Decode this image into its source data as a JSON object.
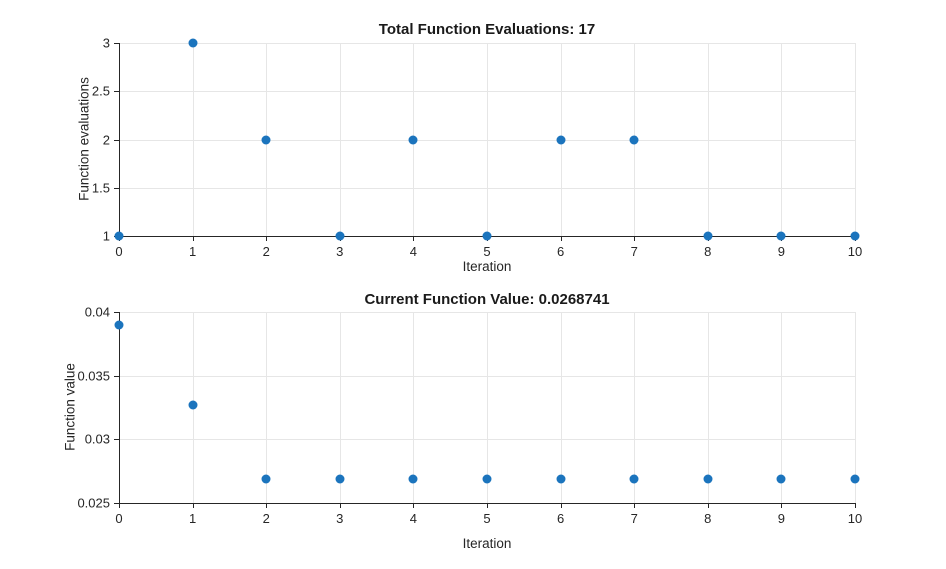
{
  "figure": {
    "background": "#ffffff"
  },
  "styles": {
    "axis_color": "#262626",
    "grid_color": "#e6e6e6",
    "tick_label_color": "#262626",
    "title_color": "#1a1a1a",
    "marker_color": "#1b74bd",
    "marker_size": 9
  },
  "chart_data": [
    {
      "type": "scatter",
      "title": "Total Function Evaluations: 17",
      "xlabel": "Iteration",
      "ylabel": "Function evaluations",
      "x": [
        0,
        1,
        2,
        3,
        4,
        5,
        6,
        7,
        8,
        9,
        10
      ],
      "y": [
        1,
        3,
        2,
        1,
        2,
        1,
        2,
        2,
        1,
        1,
        1
      ],
      "xlim": [
        0,
        10
      ],
      "ylim": [
        1,
        3
      ],
      "xticks": [
        0,
        1,
        2,
        3,
        4,
        5,
        6,
        7,
        8,
        9,
        10
      ],
      "xtick_labels": [
        "0",
        "1",
        "2",
        "3",
        "4",
        "5",
        "6",
        "7",
        "8",
        "9",
        "10"
      ],
      "yticks": [
        1,
        1.5,
        2,
        2.5,
        3
      ],
      "ytick_labels": [
        "1",
        "1.5",
        "2",
        "2.5",
        "3"
      ],
      "grid": true,
      "legend": null,
      "total_function_evaluations": 17
    },
    {
      "type": "scatter",
      "title": "Current Function Value: 0.0268741",
      "xlabel": "Iteration",
      "ylabel": "Function value",
      "x": [
        0,
        1,
        2,
        3,
        4,
        5,
        6,
        7,
        8,
        9,
        10
      ],
      "y": [
        0.039,
        0.0327,
        0.0268741,
        0.0268741,
        0.0268741,
        0.0268741,
        0.0268741,
        0.0268741,
        0.0268741,
        0.0268741,
        0.0268741
      ],
      "xlim": [
        0,
        10
      ],
      "ylim": [
        0.025,
        0.04
      ],
      "xticks": [
        0,
        1,
        2,
        3,
        4,
        5,
        6,
        7,
        8,
        9,
        10
      ],
      "xtick_labels": [
        "0",
        "1",
        "2",
        "3",
        "4",
        "5",
        "6",
        "7",
        "8",
        "9",
        "10"
      ],
      "yticks": [
        0.025,
        0.03,
        0.035,
        0.04
      ],
      "ytick_labels": [
        "0.025",
        "0.03",
        "0.035",
        "0.04"
      ],
      "grid": true,
      "legend": null,
      "current_function_value": 0.0268741
    }
  ]
}
